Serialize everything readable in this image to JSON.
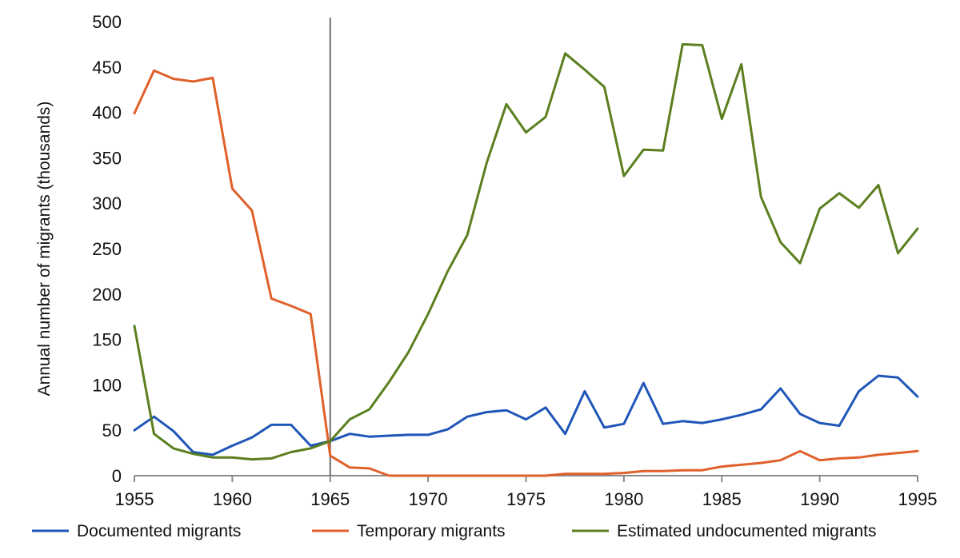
{
  "chart_data": {
    "type": "line",
    "title": "",
    "xlabel": "",
    "ylabel": "Annual number of migrants (thousands)",
    "xlim": [
      1955,
      1995
    ],
    "ylim": [
      0,
      500
    ],
    "x_ticks": [
      1955,
      1960,
      1965,
      1970,
      1975,
      1980,
      1985,
      1990,
      1995
    ],
    "y_ticks": [
      0,
      50,
      100,
      150,
      200,
      250,
      300,
      350,
      400,
      450,
      500
    ],
    "grid": false,
    "legend_position": "bottom",
    "vertical_marker_x": 1965,
    "x": [
      1955,
      1956,
      1957,
      1958,
      1959,
      1960,
      1961,
      1962,
      1963,
      1964,
      1965,
      1966,
      1967,
      1968,
      1969,
      1970,
      1971,
      1972,
      1973,
      1974,
      1975,
      1976,
      1977,
      1978,
      1979,
      1980,
      1981,
      1982,
      1983,
      1984,
      1985,
      1986,
      1987,
      1988,
      1989,
      1990,
      1991,
      1992,
      1993,
      1994,
      1995
    ],
    "series": [
      {
        "name": "Documented migrants",
        "color": "#1f56b8",
        "values": [
          50,
          65,
          49,
          26,
          23,
          33,
          42,
          56,
          56,
          33,
          38,
          46,
          43,
          44,
          45,
          45,
          51,
          65,
          70,
          72,
          62,
          75,
          46,
          93,
          53,
          57,
          102,
          57,
          60,
          58,
          62,
          67,
          73,
          96,
          68,
          58,
          55,
          93,
          110,
          108,
          87
        ]
      },
      {
        "name": "Temporary migrants",
        "color": "#e0602a",
        "values": [
          399,
          446,
          437,
          434,
          438,
          316,
          292,
          195,
          187,
          178,
          22,
          9,
          8,
          0,
          0,
          0,
          0,
          0,
          0,
          0,
          0,
          0,
          2,
          2,
          2,
          3,
          5,
          5,
          6,
          6,
          10,
          12,
          14,
          17,
          27,
          17,
          19,
          20,
          23,
          25,
          27
        ]
      },
      {
        "name": "Estimated undocumented migrants",
        "color": "#5b7f1f",
        "values": [
          165,
          46,
          30,
          24,
          20,
          20,
          18,
          19,
          26,
          30,
          38,
          62,
          73,
          103,
          136,
          178,
          225,
          265,
          345,
          409,
          378,
          395,
          465,
          447,
          428,
          330,
          359,
          358,
          475,
          474,
          393,
          453,
          307,
          257,
          234,
          294,
          311,
          295,
          320,
          245,
          272
        ]
      }
    ]
  }
}
